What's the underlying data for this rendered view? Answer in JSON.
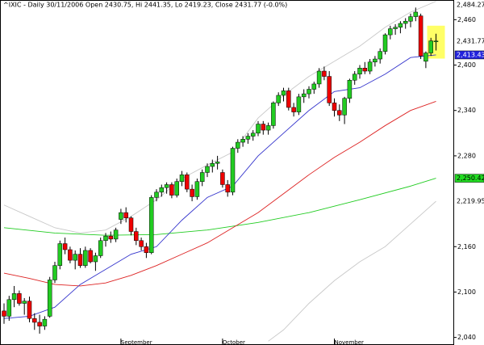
{
  "chart_data": {
    "type": "candlestick",
    "title": "^IXIC - Daily 30/11/2006 Open 2430.75, Hi 2441.35, Lo 2419.23, Close 2431.77 (-0.0%)",
    "categories": [
      null,
      null,
      null,
      null,
      null,
      null,
      null,
      null,
      null,
      null,
      null,
      null,
      null,
      null,
      null,
      null,
      null,
      null,
      null,
      null,
      null,
      null,
      null,
      "September",
      null,
      null,
      null,
      null,
      null,
      null,
      null,
      null,
      null,
      null,
      null,
      null,
      null,
      null,
      null,
      null,
      null,
      null,
      null,
      "October",
      null,
      null,
      null,
      null,
      null,
      null,
      null,
      null,
      null,
      null,
      null,
      null,
      null,
      null,
      null,
      null,
      null,
      null,
      null,
      null,
      null,
      "November",
      null,
      null,
      null,
      null,
      null,
      null,
      null,
      null,
      null,
      null,
      null,
      null,
      null,
      null,
      null,
      null,
      null,
      null,
      null,
      null
    ],
    "open": [
      2075,
      2068,
      2090,
      2098,
      2085,
      2088,
      2065,
      2060,
      2055,
      2068,
      2116,
      2135,
      2164,
      2156,
      2142,
      2150,
      2135,
      2155,
      2140,
      2148,
      2168,
      2174,
      2170,
      2196,
      2205,
      2198,
      2180,
      2168,
      2160,
      2152,
      2225,
      2232,
      2238,
      2242,
      2228,
      2246,
      2255,
      2236,
      2226,
      2246,
      2258,
      2266,
      2270,
      2258,
      2242,
      2232,
      2290,
      2298,
      2302,
      2306,
      2310,
      2322,
      2314,
      2320,
      2350,
      2360,
      2366,
      2344,
      2338,
      2358,
      2362,
      2368,
      2375,
      2392,
      2385,
      2350,
      2340,
      2334,
      2356,
      2380,
      2388,
      2396,
      2392,
      2404,
      2408,
      2418,
      2440,
      2448,
      2450,
      2455,
      2458,
      2464,
      2465,
      2405,
      2416,
      2430.75
    ],
    "high": [
      2085,
      2095,
      2108,
      2102,
      2092,
      2094,
      2072,
      2070,
      2068,
      2120,
      2140,
      2168,
      2172,
      2160,
      2155,
      2158,
      2160,
      2158,
      2152,
      2172,
      2178,
      2180,
      2185,
      2210,
      2212,
      2200,
      2185,
      2172,
      2165,
      2228,
      2236,
      2242,
      2245,
      2245,
      2250,
      2260,
      2258,
      2242,
      2250,
      2262,
      2270,
      2275,
      2280,
      2262,
      2248,
      2292,
      2302,
      2306,
      2310,
      2314,
      2326,
      2326,
      2324,
      2352,
      2364,
      2370,
      2370,
      2350,
      2362,
      2368,
      2372,
      2378,
      2396,
      2398,
      2392,
      2356,
      2348,
      2358,
      2382,
      2392,
      2400,
      2404,
      2408,
      2412,
      2422,
      2442,
      2452,
      2454,
      2458,
      2462,
      2468,
      2476,
      2468,
      2418,
      2436,
      2441.35
    ],
    "low": [
      2058,
      2062,
      2080,
      2082,
      2070,
      2060,
      2050,
      2045,
      2050,
      2066,
      2112,
      2130,
      2150,
      2138,
      2130,
      2132,
      2132,
      2138,
      2128,
      2145,
      2160,
      2165,
      2166,
      2190,
      2192,
      2175,
      2162,
      2155,
      2145,
      2150,
      2220,
      2226,
      2230,
      2224,
      2225,
      2240,
      2232,
      2220,
      2222,
      2240,
      2252,
      2258,
      2262,
      2238,
      2226,
      2228,
      2284,
      2292,
      2296,
      2300,
      2306,
      2308,
      2308,
      2316,
      2346,
      2352,
      2340,
      2332,
      2334,
      2350,
      2356,
      2362,
      2370,
      2380,
      2346,
      2332,
      2326,
      2322,
      2350,
      2374,
      2382,
      2388,
      2388,
      2398,
      2402,
      2414,
      2434,
      2440,
      2442,
      2448,
      2450,
      2458,
      2408,
      2396,
      2412,
      2419.23
    ],
    "close": [
      2068,
      2090,
      2098,
      2085,
      2088,
      2065,
      2060,
      2055,
      2064,
      2116,
      2135,
      2164,
      2156,
      2142,
      2150,
      2135,
      2155,
      2140,
      2148,
      2168,
      2174,
      2170,
      2182,
      2205,
      2198,
      2180,
      2168,
      2160,
      2152,
      2225,
      2232,
      2238,
      2242,
      2228,
      2246,
      2255,
      2236,
      2226,
      2246,
      2258,
      2266,
      2270,
      2272,
      2242,
      2232,
      2290,
      2298,
      2302,
      2306,
      2310,
      2322,
      2314,
      2320,
      2350,
      2360,
      2366,
      2344,
      2338,
      2358,
      2362,
      2368,
      2375,
      2392,
      2385,
      2350,
      2340,
      2334,
      2356,
      2380,
      2388,
      2396,
      2392,
      2404,
      2408,
      2418,
      2440,
      2448,
      2450,
      2455,
      2458,
      2464,
      2470,
      2412,
      2416,
      2432,
      2431.77
    ],
    "up_color": "#22cc22",
    "down_color": "#ee0000",
    "overlays": [
      {
        "color": "#c8c8c8",
        "x": [
          0,
          5,
          10,
          15,
          20,
          25,
          30,
          35,
          40,
          45,
          50,
          55,
          60,
          65,
          70,
          75,
          80,
          85
        ],
        "values": [
          2215,
          2200,
          2185,
          2178,
          2182,
          2200,
          2222,
          2250,
          2268,
          2285,
          2330,
          2360,
          2385,
          2405,
          2425,
          2450,
          2470,
          2484.27
        ]
      },
      {
        "color": "#c8c8c8",
        "x": [
          52,
          55,
          60,
          65,
          70,
          75,
          80,
          85
        ],
        "values": [
          2035,
          2050,
          2085,
          2115,
          2140,
          2160,
          2190,
          2219.95
        ]
      },
      {
        "color": "#22cc22",
        "x": [
          0,
          10,
          20,
          30,
          40,
          50,
          60,
          70,
          80,
          85
        ],
        "values": [
          2185,
          2178,
          2175,
          2176,
          2182,
          2192,
          2205,
          2222,
          2240,
          2250.42
        ]
      },
      {
        "color": "#dd2222",
        "x": [
          0,
          5,
          10,
          15,
          20,
          25,
          30,
          35,
          40,
          45,
          50,
          55,
          60,
          65,
          70,
          75,
          80,
          85
        ],
        "values": [
          2125,
          2118,
          2110,
          2108,
          2112,
          2122,
          2135,
          2150,
          2165,
          2185,
          2205,
          2230,
          2255,
          2278,
          2298,
          2320,
          2340,
          2352
        ]
      },
      {
        "color": "#3333cc",
        "x": [
          0,
          5,
          10,
          15,
          20,
          25,
          30,
          35,
          40,
          45,
          50,
          55,
          60,
          65,
          70,
          75,
          80,
          85
        ],
        "values": [
          2065,
          2068,
          2080,
          2110,
          2130,
          2150,
          2160,
          2195,
          2225,
          2240,
          2280,
          2310,
          2340,
          2365,
          2370,
          2388,
          2410,
          2413.43
        ]
      }
    ],
    "ylim": [
      2030,
      2486
    ],
    "yticks": [
      {
        "value": 2040,
        "label": "2,040"
      },
      {
        "value": 2100,
        "label": "2,100"
      },
      {
        "value": 2160,
        "label": "2,160"
      },
      {
        "value": 2280,
        "label": "2,280"
      },
      {
        "value": 2340,
        "label": "2,340"
      },
      {
        "value": 2400,
        "label": "2,400"
      },
      {
        "value": 2460,
        "label": "2,460"
      }
    ],
    "end_labels": [
      {
        "value": 2484.27,
        "label": "2,484.27",
        "box": "#ffffff",
        "text_color": "#000000"
      },
      {
        "value": 2431.77,
        "label": "2,431.77",
        "box": "#ffffff",
        "text_color": "#000000"
      },
      {
        "value": 2413.43,
        "label": "2,413.43",
        "box": "#2222dd",
        "text_color": "#ffffff"
      },
      {
        "value": 2250.42,
        "label": "2,250.42",
        "box": "#22dd22",
        "text_color": "#000000"
      },
      {
        "value": 2219.95,
        "label": "2,219.95",
        "box": "#ffffff",
        "text_color": "#000000"
      }
    ],
    "highlight_color": "#ffff66"
  }
}
